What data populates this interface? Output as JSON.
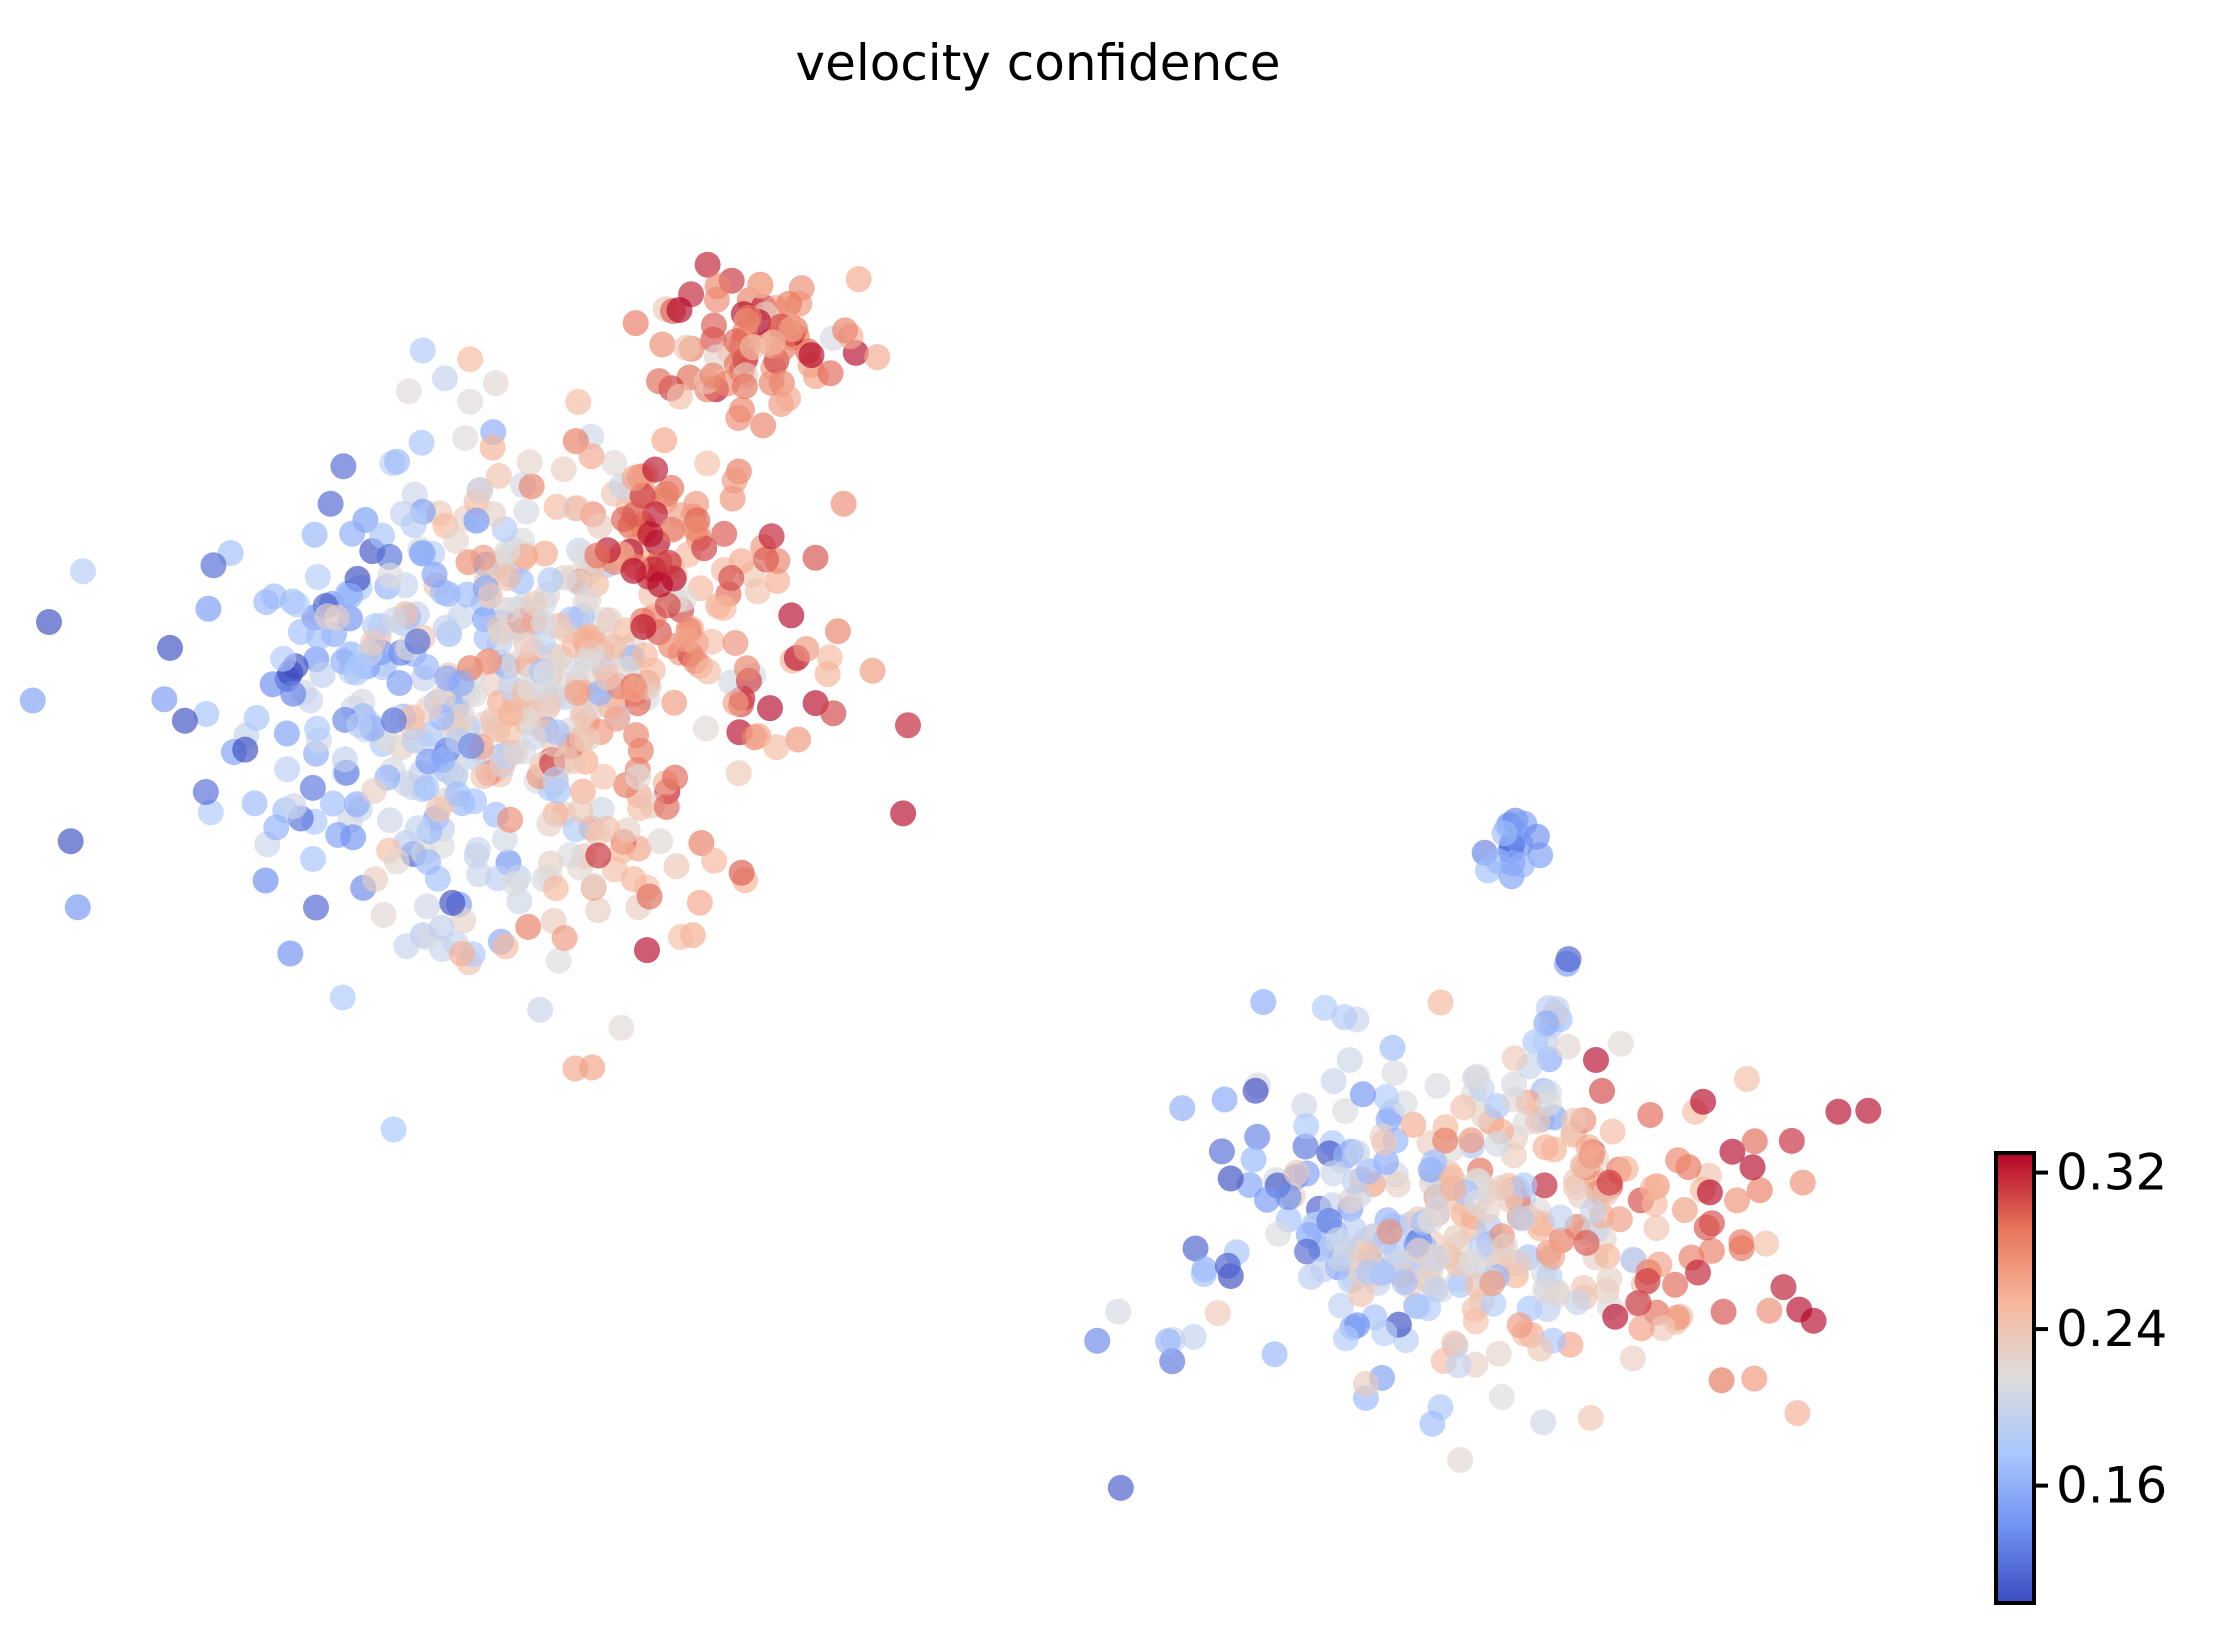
{
  "chart_data": {
    "type": "scatter",
    "title": "velocity confidence",
    "xlabel": "",
    "ylabel": "",
    "axes_visible": false,
    "grid": false,
    "colormap": "coolwarm",
    "colormap_stops": [
      "#3b4cc0",
      "#6f92f3",
      "#aac7fd",
      "#dddcdc",
      "#f7b89c",
      "#e7745b",
      "#b40426"
    ],
    "colorbar": {
      "placement": "bottom-right",
      "range": [
        0.1,
        0.33
      ],
      "ticks": [
        0.16,
        0.24,
        0.32
      ],
      "tick_labels": [
        "0.16",
        "0.24",
        "0.32"
      ]
    },
    "marker_opacity": 0.65,
    "seed": 20240511,
    "clusters": [
      {
        "id": "left-large",
        "n": 620,
        "cx": 0.22,
        "cy": 0.62,
        "rx": 0.16,
        "ry": 0.18,
        "value_gradient": "low-left to high-right"
      },
      {
        "id": "top-small",
        "n": 80,
        "cx": 0.35,
        "cy": 0.86,
        "rx": 0.05,
        "ry": 0.05,
        "value_gradient": "mostly high"
      },
      {
        "id": "bridge",
        "n": 40,
        "cx": 0.3,
        "cy": 0.72,
        "rx": 0.04,
        "ry": 0.06,
        "value_gradient": "high"
      },
      {
        "id": "tiny-island",
        "n": 18,
        "cx": 0.76,
        "cy": 0.51,
        "rx": 0.015,
        "ry": 0.02,
        "value_gradient": "low"
      },
      {
        "id": "stem",
        "n": 20,
        "cx": 0.78,
        "cy": 0.36,
        "rx": 0.01,
        "ry": 0.07,
        "value_gradient": "low to mid"
      },
      {
        "id": "right-large",
        "n": 380,
        "cx": 0.74,
        "cy": 0.24,
        "rx": 0.16,
        "ry": 0.12,
        "value_gradient": "low-left to high-right"
      }
    ]
  }
}
